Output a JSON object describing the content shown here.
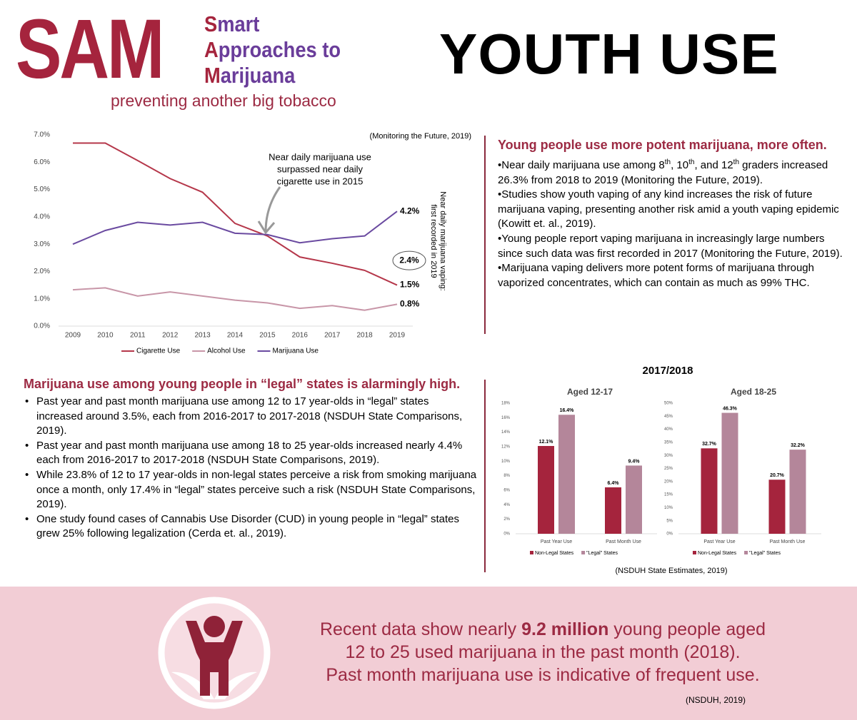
{
  "header": {
    "logo": "SAM",
    "logo_lines": [
      "Smart",
      "Approaches to",
      "Marijuana"
    ],
    "tagline": "preventing another big tobacco",
    "title": "YOUTH USE"
  },
  "sections": [
    {
      "heading": "Young people use more potent marijuana, more often.",
      "bullets": [
        [
          "Near daily marijuana use among 8",
          "th",
          ", 10",
          "th",
          ", and 12",
          "th",
          " graders increased 26.3% from 2018 to 2019 (Monitoring the Future, 2019)."
        ],
        "Studies show youth vaping of any kind increases the risk of future marijuana vaping, presenting another risk amid a youth vaping epidemic (Kowitt et. al., 2019).",
        "Young people report vaping marijuana in increasingly large numbers since such data was first recorded in 2017 (Monitoring the Future, 2019).",
        "Marijuana vaping delivers more potent forms of marijuana through vaporized concentrates, which can contain as much as 99% THC."
      ]
    },
    {
      "heading": "Marijuana use among young people in “legal” states is alarmingly high.",
      "bullets": [
        "Past year and past month marijuana use among 12 to 17 year-olds in “legal” states increased around 3.5%, each from 2016-2017 to 2017-2018 (NSDUH State Comparisons, 2019).",
        "Past year and past month marijuana use among 18 to 25 year-olds increased nearly 4.4% each from 2016-2017 to 2017-2018 (NSDUH State Comparisons, 2019).",
        "While 23.8% of 12 to 17 year-olds in non-legal states perceive a risk from smoking marijuana once a month, only 17.4% in “legal” states perceive such a risk (NSDUH State Comparisons, 2019).",
        "One study found cases of Cannabis Use Disorder (CUD) in young people in “legal” states grew 25% following legalization (Cerda et. al., 2019)."
      ]
    }
  ],
  "bar_section": {
    "title": "2017/2018",
    "source": "(NSDUH State Estimates, 2019)"
  },
  "chart_data": [
    {
      "type": "line",
      "source": "(Monitoring the Future, 2019)",
      "annotation": [
        "Near daily marijuana use",
        "surpassed near daily",
        "cigarette use in 2015"
      ],
      "categories": [
        "2009",
        "2010",
        "2011",
        "2012",
        "2013",
        "2014",
        "2015",
        "2016",
        "2017",
        "2018",
        "2019"
      ],
      "ylim": [
        0,
        7
      ],
      "yticks": [
        {
          "value": 0,
          "label": "0.0%"
        },
        {
          "value": 1,
          "label": "1.0%"
        },
        {
          "value": 2,
          "label": "2.0%"
        },
        {
          "value": 3,
          "label": "3.0%"
        },
        {
          "value": 4,
          "label": "4.0%"
        },
        {
          "value": 5,
          "label": "5.0%"
        },
        {
          "value": 6,
          "label": "6.0%"
        },
        {
          "value": 7,
          "label": "7.0%"
        }
      ],
      "series": [
        {
          "name": "Cigarette Use",
          "color": "#b5374a",
          "values": [
            6.7,
            6.7,
            6.06,
            5.4,
            4.9,
            3.76,
            3.3,
            2.53,
            2.3,
            2.04,
            1.5
          ],
          "value_labels": [
            null,
            null,
            null,
            null,
            null,
            null,
            null,
            null,
            null,
            null,
            "1.5%"
          ]
        },
        {
          "name": "Alcohol Use",
          "color": "#c896a8",
          "values": [
            1.33,
            1.4,
            1.1,
            1.25,
            1.1,
            0.95,
            0.85,
            0.65,
            0.75,
            0.58,
            0.8
          ],
          "value_labels": [
            null,
            null,
            null,
            null,
            null,
            null,
            null,
            null,
            null,
            null,
            "0.8%"
          ]
        },
        {
          "name": "Marijuana Use",
          "color": "#6a4aa0",
          "values": [
            3.0,
            3.5,
            3.8,
            3.7,
            3.8,
            3.4,
            3.35,
            3.05,
            3.2,
            3.3,
            4.2
          ],
          "value_labels": [
            null,
            null,
            null,
            null,
            null,
            null,
            null,
            null,
            null,
            null,
            "4.2%"
          ]
        }
      ],
      "vaping": {
        "lines": [
          "Near daily marijuana vaping:",
          "first recorded in 2019"
        ],
        "value": 2.4,
        "value_label": "2.4%"
      }
    },
    {
      "type": "bar",
      "title": "Aged 12-17",
      "categories": [
        "Past Year Use",
        "Past Month Use"
      ],
      "ylim": [
        0,
        18
      ],
      "yticks": [
        {
          "value": 0,
          "label": "0%"
        },
        {
          "value": 2,
          "label": "2%"
        },
        {
          "value": 4,
          "label": "4%"
        },
        {
          "value": 6,
          "label": "6%"
        },
        {
          "value": 8,
          "label": "8%"
        },
        {
          "value": 10,
          "label": "10%"
        },
        {
          "value": 12,
          "label": "12%"
        },
        {
          "value": 14,
          "label": "14%"
        },
        {
          "value": 16,
          "label": "16%"
        },
        {
          "value": 18,
          "label": "18%"
        }
      ],
      "series": [
        {
          "name": "Non-Legal States",
          "color": "#a5243d",
          "values": [
            12.1,
            6.4
          ],
          "value_labels": [
            "12.1%",
            "6.4%"
          ]
        },
        {
          "name": "\"Legal\" States",
          "color": "#b4869a",
          "values": [
            16.4,
            9.4
          ],
          "value_labels": [
            "16.4%",
            "9.4%"
          ]
        }
      ]
    },
    {
      "type": "bar",
      "title": "Aged 18-25",
      "categories": [
        "Past Year Use",
        "Past Month Use"
      ],
      "ylim": [
        0,
        50
      ],
      "yticks": [
        {
          "value": 0,
          "label": "0%"
        },
        {
          "value": 5,
          "label": "5%"
        },
        {
          "value": 10,
          "label": "10%"
        },
        {
          "value": 15,
          "label": "15%"
        },
        {
          "value": 20,
          "label": "20%"
        },
        {
          "value": 25,
          "label": "25%"
        },
        {
          "value": 30,
          "label": "30%"
        },
        {
          "value": 35,
          "label": "35%"
        },
        {
          "value": 40,
          "label": "40%"
        },
        {
          "value": 45,
          "label": "45%"
        },
        {
          "value": 50,
          "label": "50%"
        }
      ],
      "series": [
        {
          "name": "Non-Legal States",
          "color": "#a5243d",
          "values": [
            32.7,
            20.7
          ],
          "value_labels": [
            "32.7%",
            "20.7%"
          ]
        },
        {
          "name": "\"Legal\" States",
          "color": "#b4869a",
          "values": [
            46.3,
            32.2
          ],
          "value_labels": [
            "46.3%",
            "32.2%"
          ]
        }
      ]
    }
  ],
  "footer": {
    "lines": [
      [
        "Recent data show nearly ",
        "9.2 million",
        " young people aged"
      ],
      "12 to 25 used marijuana in the past month (2018).",
      "Past month marijuana use is indicative of frequent use."
    ],
    "source": "(NSDUH, 2019)"
  }
}
